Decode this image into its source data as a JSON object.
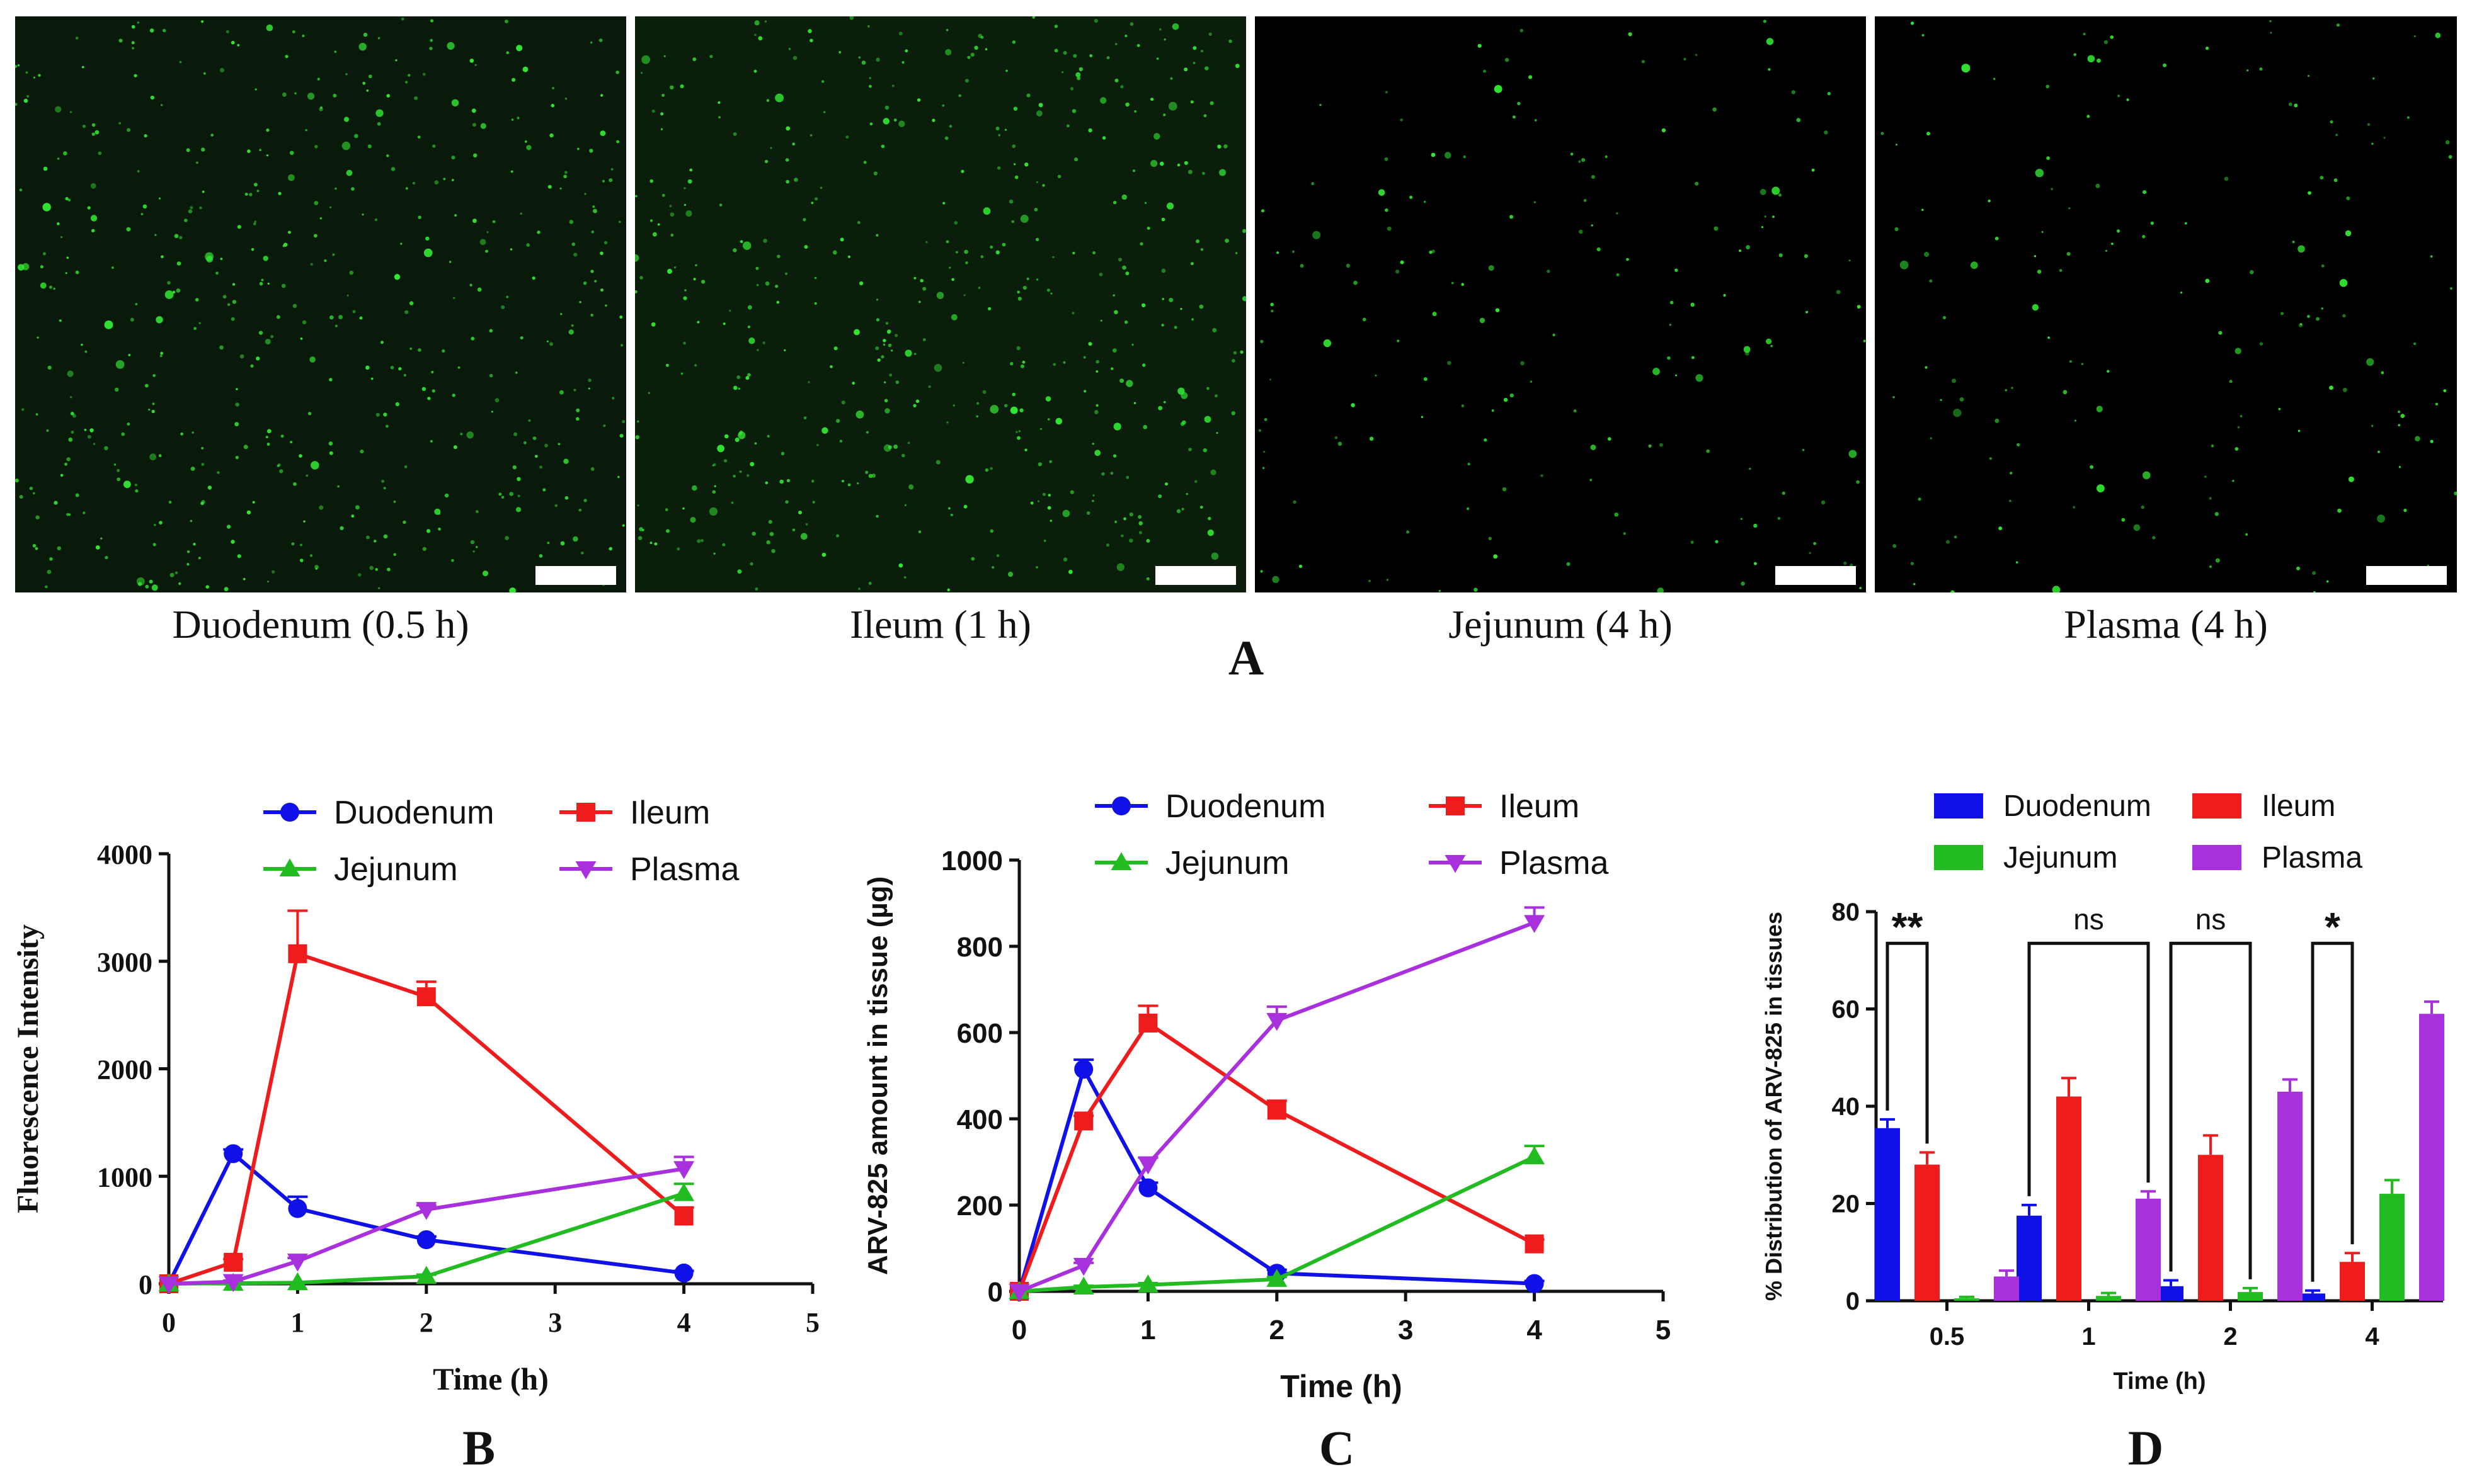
{
  "panel_A": {
    "letter": "A",
    "images": [
      {
        "caption": "Duodenum (0.5 h)",
        "density": "high",
        "tint": "#0a1a0a"
      },
      {
        "caption": "Ileum (1 h)",
        "density": "high",
        "tint": "#0b1d0b"
      },
      {
        "caption": "Jejunum (4 h)",
        "density": "low",
        "tint": "#000000"
      },
      {
        "caption": "Plasma (4 h)",
        "density": "low",
        "tint": "#000000"
      }
    ],
    "dot_color": "#33e833"
  },
  "colors": {
    "Duodenum": "#1010e8",
    "Ileum": "#ee1c1c",
    "Jejunum": "#22bb22",
    "Plasma": "#a830dd"
  },
  "chart_data": [
    {
      "type": "line",
      "panel": "B",
      "xlabel": "Time (h)",
      "ylabel": "Fluorescence Intensity",
      "xlim": [
        0,
        5
      ],
      "ylim": [
        0,
        4000
      ],
      "xticks": [
        0,
        1,
        2,
        3,
        4,
        5
      ],
      "yticks": [
        0,
        1000,
        2000,
        3000,
        4000
      ],
      "legend": [
        "Duodenum",
        "Ileum",
        "Jejunum",
        "Plasma"
      ],
      "series": [
        {
          "name": "Duodenum",
          "marker": "circle",
          "x": [
            0,
            0.5,
            1,
            2,
            4
          ],
          "y": [
            0,
            1210,
            700,
            410,
            100
          ],
          "err": [
            0,
            40,
            110,
            30,
            20
          ]
        },
        {
          "name": "Ileum",
          "marker": "square",
          "x": [
            0,
            0.5,
            1,
            2,
            4
          ],
          "y": [
            0,
            200,
            3070,
            2670,
            630
          ],
          "err": [
            0,
            30,
            400,
            140,
            80
          ]
        },
        {
          "name": "Jejunum",
          "marker": "triangle-up",
          "x": [
            0,
            0.5,
            1,
            2,
            4
          ],
          "y": [
            0,
            5,
            10,
            70,
            840
          ],
          "err": [
            0,
            5,
            5,
            15,
            90
          ]
        },
        {
          "name": "Plasma",
          "marker": "triangle-down",
          "x": [
            0,
            0.5,
            1,
            2,
            4
          ],
          "y": [
            0,
            20,
            210,
            690,
            1070
          ],
          "err": [
            0,
            10,
            30,
            40,
            110
          ]
        }
      ]
    },
    {
      "type": "line",
      "panel": "C",
      "xlabel": "Time (h)",
      "ylabel": "ARV-825 amount in tissue (µg)",
      "xlim": [
        0,
        5
      ],
      "ylim": [
        0,
        1000
      ],
      "xticks": [
        0,
        1,
        2,
        3,
        4,
        5
      ],
      "yticks": [
        0,
        200,
        400,
        600,
        800,
        1000
      ],
      "legend": [
        "Duodenum",
        "Ileum",
        "Jejunum",
        "Plasma"
      ],
      "series": [
        {
          "name": "Duodenum",
          "marker": "circle",
          "x": [
            0,
            0.5,
            1,
            2,
            4
          ],
          "y": [
            0,
            515,
            240,
            42,
            18
          ],
          "err": [
            0,
            22,
            12,
            8,
            6
          ]
        },
        {
          "name": "Ileum",
          "marker": "square",
          "x": [
            0,
            0.5,
            1,
            2,
            4
          ],
          "y": [
            0,
            395,
            622,
            420,
            110
          ],
          "err": [
            0,
            12,
            40,
            22,
            10
          ]
        },
        {
          "name": "Jejunum",
          "marker": "triangle-up",
          "x": [
            0,
            0.5,
            1,
            2,
            4
          ],
          "y": [
            0,
            10,
            15,
            28,
            312
          ],
          "err": [
            0,
            3,
            4,
            5,
            25
          ]
        },
        {
          "name": "Plasma",
          "marker": "triangle-down",
          "x": [
            0,
            0.5,
            1,
            2,
            4
          ],
          "y": [
            0,
            60,
            295,
            628,
            855
          ],
          "err": [
            0,
            6,
            15,
            32,
            35
          ]
        }
      ]
    },
    {
      "type": "bar",
      "panel": "D",
      "xlabel": "Time (h)",
      "ylabel": "% Distribution of ARV-825 in tissues",
      "categories": [
        "0.5",
        "1",
        "2",
        "4"
      ],
      "ylim": [
        0,
        80
      ],
      "yticks": [
        0,
        20,
        40,
        60,
        80
      ],
      "legend": [
        "Duodenum",
        "Ileum",
        "Jejunum",
        "Plasma"
      ],
      "series": [
        {
          "name": "Duodenum",
          "values": [
            35.5,
            17.5,
            3,
            1.5
          ],
          "err": [
            1.8,
            2.2,
            1.2,
            0.6
          ]
        },
        {
          "name": "Ileum",
          "values": [
            28,
            42,
            30,
            8
          ],
          "err": [
            2.5,
            3.8,
            4,
            1.8
          ]
        },
        {
          "name": "Jejunum",
          "values": [
            0.5,
            1,
            1.8,
            22
          ],
          "err": [
            0.3,
            0.6,
            0.8,
            2.8
          ]
        },
        {
          "name": "Plasma",
          "values": [
            5,
            21,
            43,
            59
          ],
          "err": [
            1.2,
            1.5,
            2.5,
            2.5
          ]
        }
      ],
      "significance": [
        {
          "category": "0.5",
          "label": "**",
          "from_series": 0,
          "to_series": 1
        },
        {
          "category": "1",
          "label": "ns",
          "from_series": 0,
          "to_series": 3
        },
        {
          "category": "2",
          "label": "ns",
          "from_series": 0,
          "to_series": 2
        },
        {
          "category": "4",
          "label": "*",
          "from_series": 0,
          "to_series": 1
        }
      ]
    }
  ]
}
